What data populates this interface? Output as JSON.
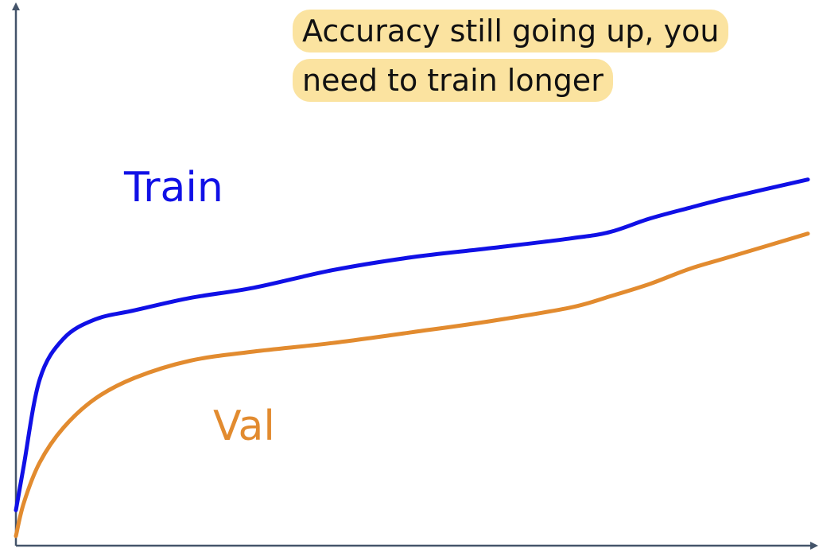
{
  "chart_data": {
    "type": "line",
    "title": "",
    "xlabel": "",
    "ylabel": "",
    "xlim": [
      0,
      100
    ],
    "ylim": [
      0,
      100
    ],
    "grid": false,
    "x": [
      0,
      1,
      3,
      6,
      10,
      15,
      22,
      30,
      40,
      50,
      60,
      70,
      75,
      80,
      85,
      90,
      100
    ],
    "series": [
      {
        "name": "Train",
        "color": "#1010e6",
        "values": [
          6.6,
          15,
          31,
          38.6,
          42.2,
          43.9,
          46.2,
          48.1,
          51.4,
          53.8,
          55.5,
          57.3,
          58.5,
          61,
          63,
          64.9,
          68.3
        ]
      },
      {
        "name": "Val",
        "color": "#e28b2f",
        "values": [
          1.8,
          8,
          15.5,
          22,
          27.4,
          31.3,
          34.5,
          36.2,
          37.8,
          39.8,
          41.9,
          44.4,
          46.5,
          48.8,
          51.6,
          53.8,
          58.2
        ]
      }
    ],
    "annotations": [
      {
        "line1": "Accuracy still going up, you",
        "line2": "need to train longer",
        "highlight_color": "#fbe3a0"
      }
    ],
    "axis_color": "#44546a"
  }
}
